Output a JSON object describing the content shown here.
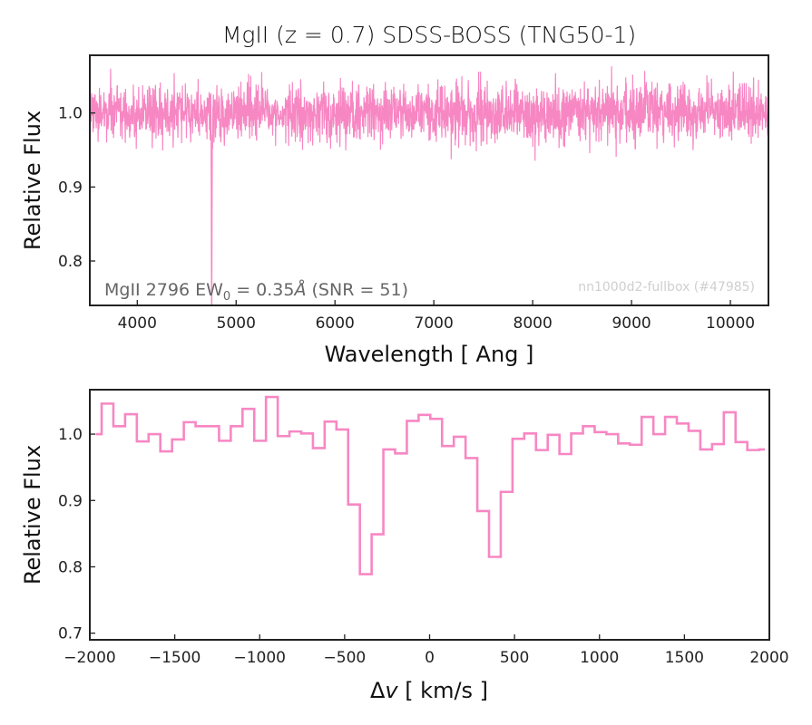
{
  "figure": {
    "title": "MgII (z = 0.7) SDSS-BOSS (TNG50-1)",
    "line_color": "#f787c3",
    "axes_color": "#222222"
  },
  "chart_data": [
    {
      "type": "line",
      "name": "full-spectrum",
      "xlabel": "Wavelength [ Ang ]",
      "ylabel": "Relative Flux",
      "xlim": [
        3520,
        10385
      ],
      "ylim": [
        0.74,
        1.078
      ],
      "xticks": [
        4000,
        5000,
        6000,
        7000,
        8000,
        9000,
        10000
      ],
      "xtick_labels": [
        "4000",
        "5000",
        "6000",
        "7000",
        "8000",
        "9000",
        "10000"
      ],
      "yticks": [
        0.8,
        0.9,
        1.0
      ],
      "ytick_labels": [
        "0.8",
        "0.9",
        "1.0"
      ],
      "grid": false,
      "spectrum": {
        "continuum": 1.0,
        "snr": 51,
        "noise_sigma": 0.0196,
        "pixel_step_ang": 2.7,
        "seed": 47985,
        "absorption_lines": [
          {
            "wavelength": 4753,
            "min_flux": 0.7,
            "width_ang": 3
          }
        ]
      },
      "annotation": {
        "prefix": "MgII 2796 EW",
        "subscript": "0",
        "suffix": " = 0.35",
        "unit": "Å",
        "tail": " (SNR = 51)"
      },
      "watermark": "nn1000d2-fullbox (#47985)"
    },
    {
      "type": "line",
      "drawstyle": "steps-mid",
      "name": "zoom-spectrum",
      "xlabel_delta": "Δ",
      "xlabel_var": "v",
      "xlabel_unit": " [ km/s ]",
      "ylabel": "Relative Flux",
      "xlim": [
        -2000,
        2000
      ],
      "ylim": [
        0.69,
        1.067
      ],
      "xticks": [
        -2000,
        -1500,
        -1000,
        -500,
        0,
        500,
        1000,
        1500,
        2000
      ],
      "xtick_labels": [
        "−2000",
        "−1500",
        "−1000",
        "−500",
        "0",
        "500",
        "1000",
        "1500",
        "2000"
      ],
      "yticks": [
        0.7,
        0.8,
        0.9,
        1.0
      ],
      "ytick_labels": [
        "0.7",
        "0.8",
        "0.9",
        "1.0"
      ],
      "grid": false,
      "x_start": -1965,
      "x_step": 69.1,
      "values": [
        1.0,
        1.046,
        1.012,
        1.03,
        0.989,
        1.0,
        0.974,
        0.992,
        1.018,
        1.012,
        1.012,
        0.99,
        1.012,
        1.038,
        0.99,
        1.056,
        0.997,
        1.004,
        1.001,
        0.979,
        1.019,
        1.007,
        0.894,
        0.789,
        0.849,
        0.977,
        0.971,
        1.02,
        1.029,
        1.023,
        0.982,
        0.996,
        0.964,
        0.884,
        0.815,
        0.913,
        0.993,
        1.001,
        0.976,
        0.999,
        0.97,
        1.001,
        1.012,
        1.003,
        1.0,
        0.986,
        0.984,
        1.026,
        1.0,
        1.026,
        1.016,
        1.005,
        0.977,
        0.985,
        1.033,
        0.988,
        0.976,
        0.977
      ]
    }
  ]
}
